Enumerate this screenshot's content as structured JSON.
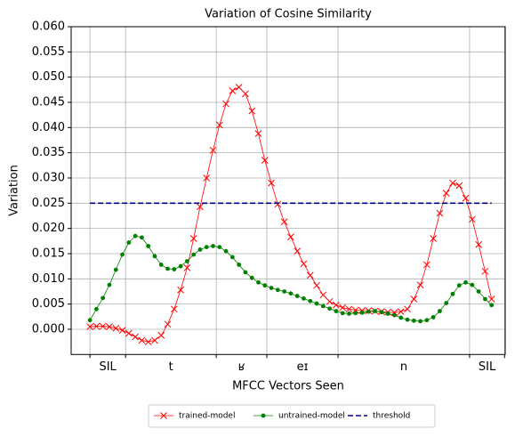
{
  "chart_data": {
    "type": "line",
    "title": "Variation of Cosine Similarity",
    "xlabel": "MFCC Vectors Seen",
    "ylabel": "Variation",
    "segments": [
      "SIL",
      "t",
      "ʁ",
      "eɪ",
      "n",
      "SIL"
    ],
    "xlim": [
      -2.9,
      64.1
    ],
    "xticks": [
      0,
      5.5,
      19.5,
      27.3,
      38.3,
      58.6,
      64
    ],
    "ylim": [
      -0.005,
      0.06
    ],
    "yticks": [
      {
        "value": 0,
        "label": "0.000"
      },
      {
        "value": 0.005,
        "label": "0.005"
      },
      {
        "value": 0.01,
        "label": "0.010"
      },
      {
        "value": 0.015,
        "label": "0.015"
      },
      {
        "value": 0.02,
        "label": "0.020"
      },
      {
        "value": 0.025,
        "label": "0.025"
      },
      {
        "value": 0.03,
        "label": "0.030"
      },
      {
        "value": 0.035,
        "label": "0.035"
      },
      {
        "value": 0.04,
        "label": "0.040"
      },
      {
        "value": 0.045,
        "label": "0.045"
      },
      {
        "value": 0.05,
        "label": "0.050"
      },
      {
        "value": 0.055,
        "label": "0.055"
      },
      {
        "value": 0.06,
        "label": "0.060"
      }
    ],
    "grid": true,
    "legend": "bottom",
    "series": [
      {
        "name": "trained-model",
        "color": "#ff0000",
        "marker": "x",
        "values": [
          0.0005,
          0.0006,
          0.0006,
          0.0005,
          0.0002,
          -0.0002,
          -0.0008,
          -0.0015,
          -0.0022,
          -0.0025,
          -0.0022,
          -0.0012,
          0.001,
          0.004,
          0.0078,
          0.0122,
          0.018,
          0.0243,
          0.03,
          0.0355,
          0.0405,
          0.0447,
          0.0473,
          0.048,
          0.0467,
          0.0433,
          0.0388,
          0.0335,
          0.029,
          0.0248,
          0.0213,
          0.0183,
          0.0155,
          0.013,
          0.0107,
          0.0087,
          0.0068,
          0.0055,
          0.0048,
          0.0043,
          0.004,
          0.0038,
          0.0037,
          0.0037,
          0.0036,
          0.0035,
          0.0034,
          0.0033,
          0.0035,
          0.004,
          0.006,
          0.0088,
          0.0128,
          0.018,
          0.023,
          0.027,
          0.029,
          0.0285,
          0.026,
          0.0218,
          0.0168,
          0.0115,
          0.006
        ]
      },
      {
        "name": "untrained-model",
        "color": "#008000",
        "marker": "o",
        "values": [
          0.0018,
          0.004,
          0.0062,
          0.0088,
          0.0118,
          0.0148,
          0.0172,
          0.0185,
          0.0182,
          0.0165,
          0.0145,
          0.0128,
          0.012,
          0.0119,
          0.0125,
          0.0135,
          0.0148,
          0.0158,
          0.0163,
          0.0165,
          0.0163,
          0.0155,
          0.0143,
          0.0128,
          0.0113,
          0.0102,
          0.0093,
          0.0087,
          0.0082,
          0.0078,
          0.0075,
          0.0071,
          0.0066,
          0.0061,
          0.0056,
          0.0051,
          0.0046,
          0.0041,
          0.0036,
          0.0032,
          0.0031,
          0.0032,
          0.0033,
          0.0035,
          0.0036,
          0.0034,
          0.0031,
          0.0028,
          0.0023,
          0.0019,
          0.0017,
          0.0016,
          0.0018,
          0.0024,
          0.0036,
          0.0052,
          0.007,
          0.0087,
          0.0093,
          0.0088,
          0.0075,
          0.006,
          0.0048
        ]
      },
      {
        "name": "threshold",
        "color": "#00008b",
        "dashed": true,
        "x": [
          0,
          62
        ],
        "values": [
          0.025,
          0.025
        ]
      }
    ]
  }
}
